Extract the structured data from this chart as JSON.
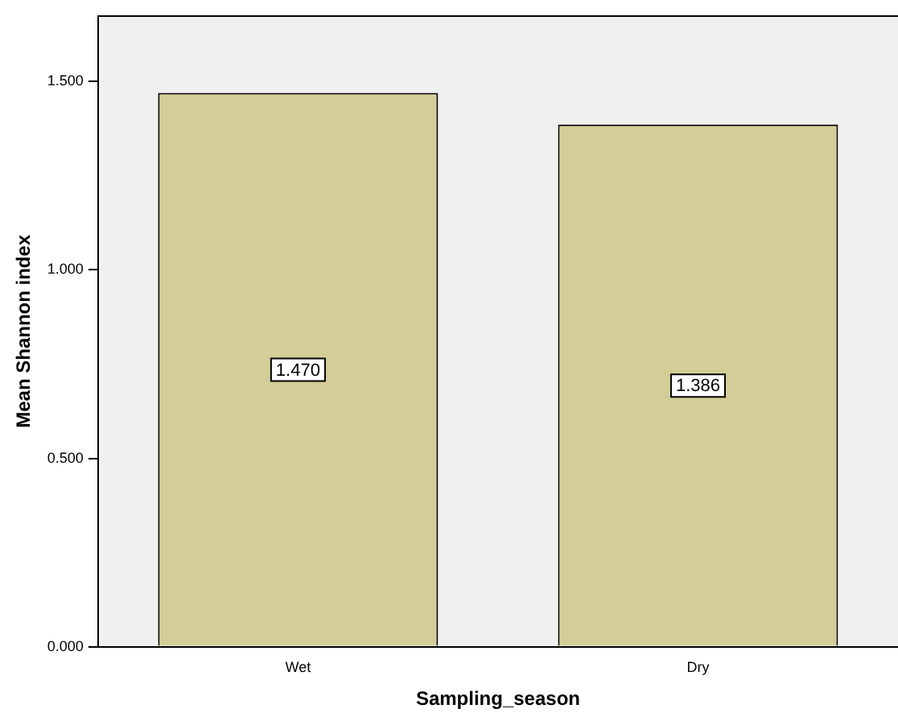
{
  "chart_data": {
    "type": "bar",
    "xlabel": "Sampling_season",
    "ylabel": "Mean Shannon index",
    "categories": [
      "Wet",
      "Dry"
    ],
    "values": [
      1.47,
      1.386
    ],
    "value_labels": [
      "1.470",
      "1.386"
    ],
    "color": "#d3ce97",
    "ylim": [
      0,
      1.674
    ],
    "yticks": [
      {
        "value": 0,
        "label": "0.000"
      },
      {
        "value": 0.5,
        "label": "0.500"
      },
      {
        "value": 1,
        "label": "1.000"
      },
      {
        "value": 1.5,
        "label": "1.500"
      }
    ],
    "grid": false,
    "legend": false
  }
}
